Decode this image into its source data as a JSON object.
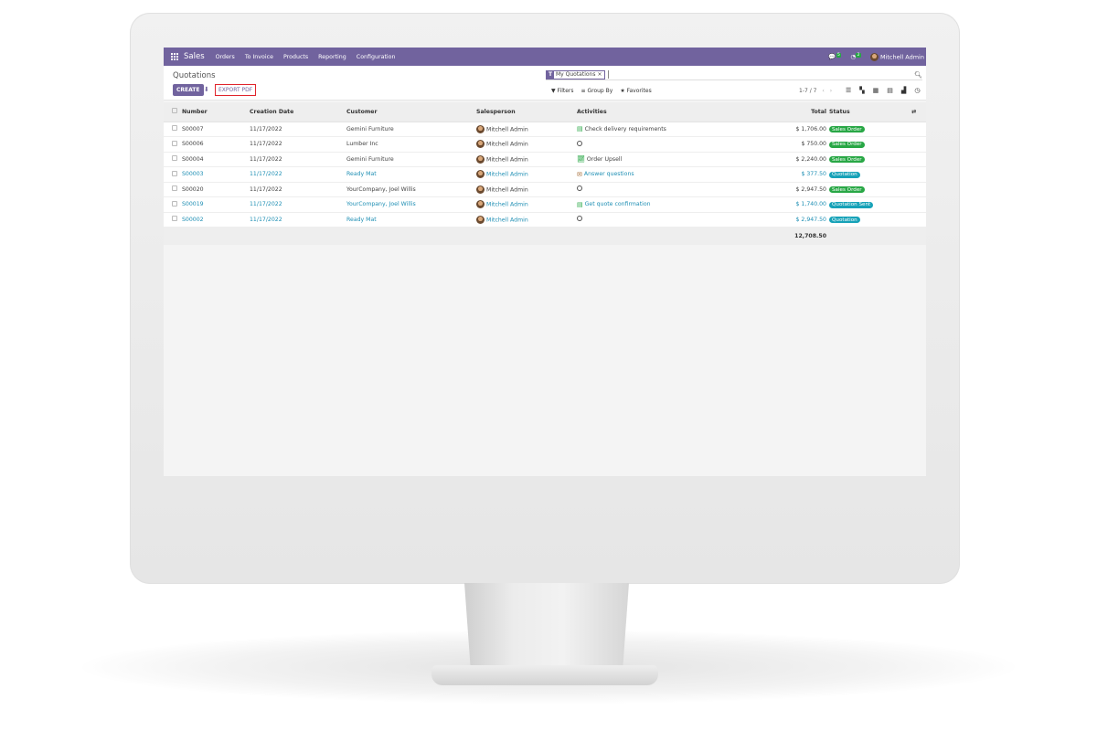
{
  "navbar": {
    "app": "Sales",
    "menu": [
      "Orders",
      "To Invoice",
      "Products",
      "Reporting",
      "Configuration"
    ],
    "messages_count": "5",
    "activities_count": "2",
    "user": "Mitchell Admin"
  },
  "control_panel": {
    "title": "Quotations",
    "create_label": "CREATE",
    "export_label": "EXPORT PDF",
    "facet": "My Quotations",
    "filters": "Filters",
    "group_by": "Group By",
    "favorites": "Favorites",
    "pager": "1-7 / 7"
  },
  "table": {
    "headers": {
      "number": "Number",
      "date": "Creation Date",
      "customer": "Customer",
      "salesperson": "Salesperson",
      "activities": "Activities",
      "total": "Total",
      "status": "Status"
    },
    "rows": [
      {
        "number": "S00007",
        "date": "11/17/2022",
        "customer": "Gemini Furniture",
        "salesperson": "Mitchell Admin",
        "activity": "Check delivery requirements",
        "activity_icon": "tasks-icon",
        "total": "$ 1,706.00",
        "status": "Sales Order",
        "highlight": false
      },
      {
        "number": "S00006",
        "date": "11/17/2022",
        "customer": "Lumber Inc",
        "salesperson": "Mitchell Admin",
        "activity": "",
        "activity_icon": "clock-icon",
        "total": "$ 750.00",
        "status": "Sales Order",
        "highlight": false
      },
      {
        "number": "S00004",
        "date": "11/17/2022",
        "customer": "Gemini Furniture",
        "salesperson": "Mitchell Admin",
        "activity": "Order Upsell",
        "activity_icon": "chart-line-icon",
        "total": "$ 2,240.00",
        "status": "Sales Order",
        "highlight": false
      },
      {
        "number": "S00003",
        "date": "11/17/2022",
        "customer": "Ready Mat",
        "salesperson": "Mitchell Admin",
        "activity": "Answer questions",
        "activity_icon": "envelope-icon",
        "total": "$ 377.50",
        "status": "Quotation",
        "highlight": true
      },
      {
        "number": "S00020",
        "date": "11/17/2022",
        "customer": "YourCompany, Joel Willis",
        "salesperson": "Mitchell Admin",
        "activity": "",
        "activity_icon": "clock-icon",
        "total": "$ 2,947.50",
        "status": "Sales Order",
        "highlight": false
      },
      {
        "number": "S00019",
        "date": "11/17/2022",
        "customer": "YourCompany, Joel Willis",
        "salesperson": "Mitchell Admin",
        "activity": "Get quote confirmation",
        "activity_icon": "tasks-icon",
        "total": "$ 1,740.00",
        "status": "Quotation Sent",
        "highlight": true
      },
      {
        "number": "S00002",
        "date": "11/17/2022",
        "customer": "Ready Mat",
        "salesperson": "Mitchell Admin",
        "activity": "",
        "activity_icon": "clock-icon",
        "total": "$ 2,947.50",
        "status": "Quotation",
        "highlight": true
      }
    ],
    "grand_total": "12,708.50"
  },
  "colors": {
    "brand": "#71639e",
    "sales_order": "#28a745",
    "quotation": "#17a2b8",
    "link": "#1f8fb4"
  }
}
